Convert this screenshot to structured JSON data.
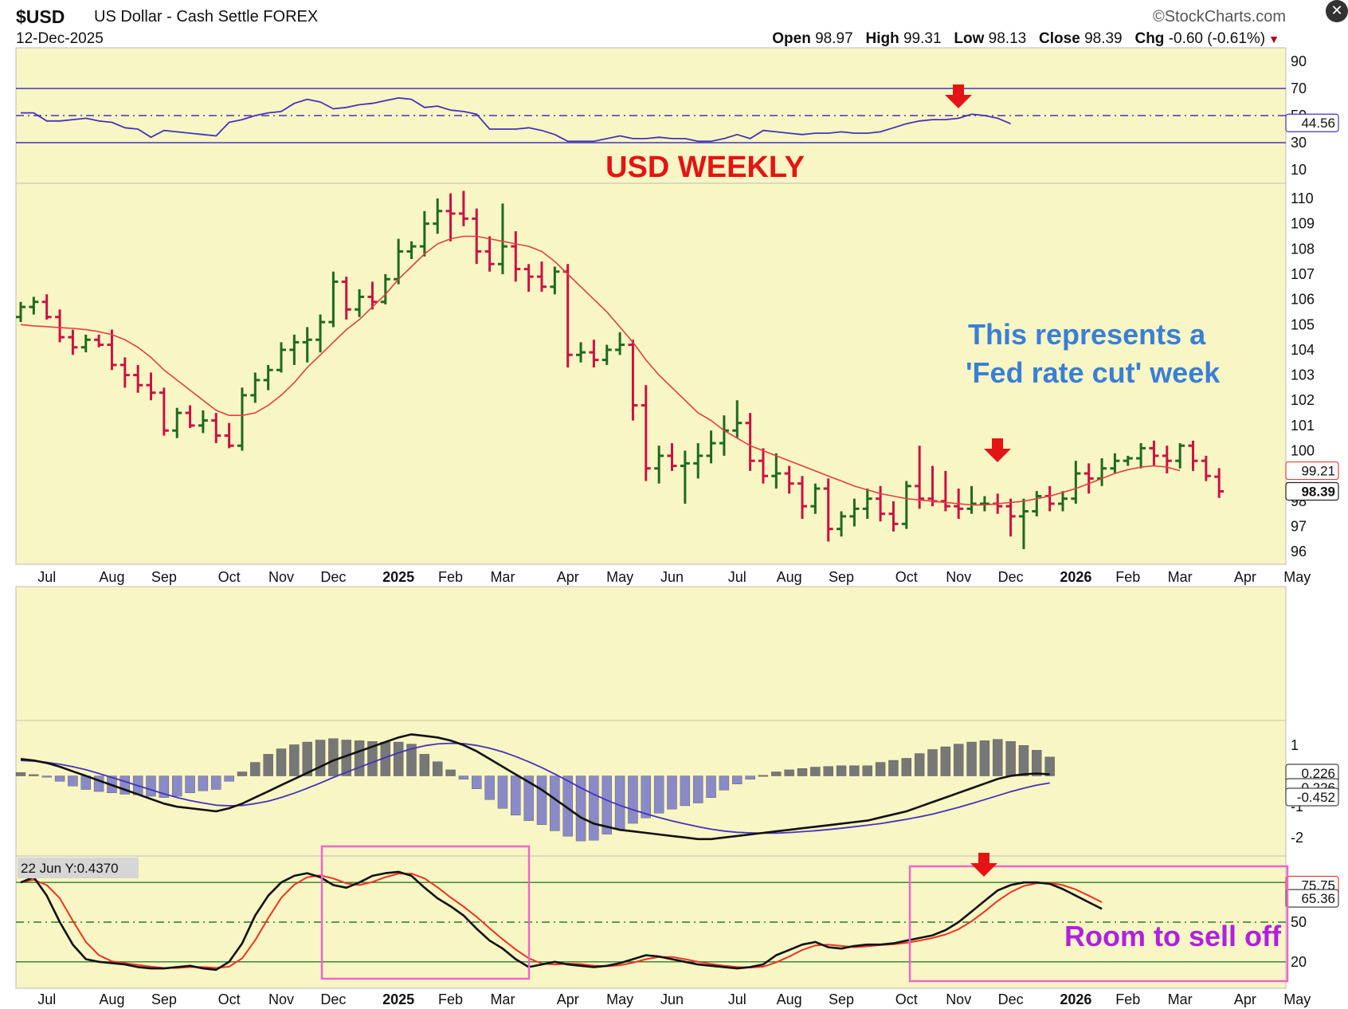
{
  "header": {
    "symbol": "$USD",
    "description": "US Dollar - Cash Settle  FOREX",
    "date": "12-Dec-2025",
    "source": "©StockCharts.com",
    "open_label": "Open",
    "open": "98.97",
    "high_label": "High",
    "high": "99.31",
    "low_label": "Low",
    "low": "98.13",
    "close_label": "Close",
    "close": "98.39",
    "chg_label": "Chg",
    "chg": "-0.60 (-0.61%)"
  },
  "chart_data": {
    "type": "line",
    "background": "#f8f6c4",
    "x_labels": [
      {
        "i": 2,
        "text": "Jul"
      },
      {
        "i": 7,
        "text": "Aug"
      },
      {
        "i": 11,
        "text": "Sep"
      },
      {
        "i": 16,
        "text": "Oct"
      },
      {
        "i": 20,
        "text": "Nov"
      },
      {
        "i": 24,
        "text": "Dec"
      },
      {
        "i": 29,
        "text": "2025",
        "bold": true
      },
      {
        "i": 33,
        "text": "Feb"
      },
      {
        "i": 37,
        "text": "Mar"
      },
      {
        "i": 42,
        "text": "Apr"
      },
      {
        "i": 46,
        "text": "May"
      },
      {
        "i": 50,
        "text": "Jun"
      },
      {
        "i": 55,
        "text": "Jul"
      },
      {
        "i": 59,
        "text": "Aug"
      },
      {
        "i": 63,
        "text": "Sep"
      },
      {
        "i": 68,
        "text": "Oct"
      },
      {
        "i": 72,
        "text": "Nov"
      },
      {
        "i": 76,
        "text": "Dec"
      },
      {
        "i": 81,
        "text": "2026",
        "bold": true
      },
      {
        "i": 85,
        "text": "Feb"
      },
      {
        "i": 89,
        "text": "Mar"
      },
      {
        "i": 94,
        "text": "Apr"
      },
      {
        "i": 98,
        "text": "May"
      }
    ],
    "rsi": {
      "ylim": [
        0,
        100
      ],
      "ticks": [
        90,
        70,
        50,
        30,
        10
      ],
      "levels": [
        70,
        50,
        30
      ],
      "last_value": "44.56",
      "values": [
        52,
        52,
        46,
        46,
        47,
        48,
        46,
        45,
        41,
        40,
        34,
        39,
        38,
        37,
        36,
        35,
        45,
        47,
        50,
        52,
        53,
        59,
        62,
        60,
        55,
        56,
        58,
        59,
        61,
        63,
        62,
        56,
        57,
        54,
        53,
        51,
        40,
        40,
        40,
        41,
        39,
        36,
        31,
        31,
        31,
        33,
        35,
        33,
        33,
        34,
        33,
        33,
        31,
        31,
        33,
        36,
        33,
        39,
        38,
        37,
        36,
        37,
        37,
        38,
        37,
        37,
        38,
        41,
        44,
        46,
        47,
        47,
        48,
        51,
        50,
        48,
        44
      ]
    },
    "price": {
      "ylim": [
        95.5,
        110.6
      ],
      "ticks": [
        110,
        109,
        108,
        107,
        106,
        105,
        104,
        103,
        102,
        101,
        100,
        98,
        97,
        96
      ],
      "ma_label": "99.21",
      "last_label": "98.39",
      "bars": [
        [
          105.3,
          105.9,
          105.1,
          105.7
        ],
        [
          105.7,
          106.1,
          105.4,
          105.9
        ],
        [
          105.9,
          106.2,
          105.2,
          105.3
        ],
        [
          105.3,
          105.6,
          104.3,
          104.5
        ],
        [
          104.5,
          104.8,
          103.8,
          104.1
        ],
        [
          104.1,
          104.6,
          103.9,
          104.4
        ],
        [
          104.4,
          104.6,
          104.1,
          104.2
        ],
        [
          104.2,
          104.8,
          103.2,
          103.4
        ],
        [
          103.4,
          103.7,
          102.5,
          103.0
        ],
        [
          103.0,
          103.4,
          102.3,
          102.6
        ],
        [
          102.6,
          103.1,
          102.0,
          102.3
        ],
        [
          102.3,
          102.5,
          100.6,
          100.8
        ],
        [
          100.8,
          101.7,
          100.5,
          101.5
        ],
        [
          101.5,
          101.8,
          100.9,
          101.0
        ],
        [
          101.0,
          101.6,
          100.7,
          101.2
        ],
        [
          101.2,
          101.5,
          100.3,
          100.6
        ],
        [
          100.6,
          101.1,
          100.1,
          100.2
        ],
        [
          100.2,
          102.5,
          100.0,
          102.2
        ],
        [
          102.2,
          103.1,
          101.9,
          102.8
        ],
        [
          102.8,
          103.4,
          102.4,
          103.2
        ],
        [
          103.2,
          104.3,
          103.1,
          104.0
        ],
        [
          104.0,
          104.6,
          103.4,
          104.3
        ],
        [
          104.3,
          104.9,
          103.5,
          104.4
        ],
        [
          104.4,
          105.4,
          103.9,
          105.1
        ],
        [
          105.1,
          107.1,
          104.9,
          106.7
        ],
        [
          106.7,
          106.9,
          105.2,
          105.6
        ],
        [
          105.6,
          106.4,
          105.3,
          106.1
        ],
        [
          106.1,
          106.7,
          105.6,
          105.9
        ],
        [
          105.9,
          107.0,
          105.8,
          106.8
        ],
        [
          106.8,
          108.4,
          106.6,
          107.9
        ],
        [
          107.9,
          108.3,
          107.6,
          108.1
        ],
        [
          108.1,
          109.5,
          107.7,
          109.0
        ],
        [
          109.0,
          110.0,
          108.6,
          109.5
        ],
        [
          109.5,
          110.2,
          108.3,
          109.4
        ],
        [
          109.4,
          110.3,
          108.9,
          109.2
        ],
        [
          109.2,
          109.6,
          107.4,
          107.9
        ],
        [
          107.9,
          108.5,
          107.1,
          107.4
        ],
        [
          107.4,
          109.8,
          107.0,
          108.1
        ],
        [
          108.1,
          108.7,
          106.7,
          107.2
        ],
        [
          107.2,
          107.4,
          106.3,
          106.9
        ],
        [
          106.9,
          107.5,
          106.3,
          106.5
        ],
        [
          106.5,
          107.3,
          106.2,
          107.1
        ],
        [
          107.1,
          107.4,
          103.3,
          103.8
        ],
        [
          103.8,
          104.3,
          103.5,
          103.9
        ],
        [
          103.9,
          104.4,
          103.3,
          103.6
        ],
        [
          103.6,
          104.2,
          103.4,
          104.0
        ],
        [
          104.0,
          104.7,
          103.8,
          104.2
        ],
        [
          104.2,
          104.4,
          101.2,
          101.8
        ],
        [
          101.8,
          102.6,
          98.8,
          99.3
        ],
        [
          99.3,
          100.2,
          98.7,
          99.8
        ],
        [
          99.8,
          100.3,
          99.2,
          99.4
        ],
        [
          99.4,
          100.0,
          97.9,
          99.5
        ],
        [
          99.5,
          100.3,
          98.9,
          99.8
        ],
        [
          99.8,
          100.8,
          99.5,
          100.3
        ],
        [
          100.3,
          101.4,
          99.8,
          100.8
        ],
        [
          100.8,
          102.0,
          100.5,
          101.1
        ],
        [
          101.1,
          101.5,
          99.2,
          99.6
        ],
        [
          99.6,
          100.1,
          98.7,
          99.0
        ],
        [
          99.0,
          99.9,
          98.5,
          99.1
        ],
        [
          99.1,
          99.4,
          98.3,
          98.7
        ],
        [
          98.7,
          99.0,
          97.3,
          97.8
        ],
        [
          97.8,
          98.7,
          97.5,
          98.5
        ],
        [
          98.5,
          98.9,
          96.4,
          96.9
        ],
        [
          96.9,
          97.6,
          96.6,
          97.4
        ],
        [
          97.4,
          98.1,
          97.0,
          97.7
        ],
        [
          97.7,
          98.5,
          97.3,
          98.1
        ],
        [
          98.1,
          98.6,
          97.2,
          97.5
        ],
        [
          97.5,
          98.0,
          96.8,
          97.1
        ],
        [
          97.1,
          98.8,
          96.9,
          98.6
        ],
        [
          98.6,
          100.2,
          97.7,
          98.1
        ],
        [
          98.1,
          99.4,
          97.8,
          98.0
        ],
        [
          98.0,
          99.2,
          97.6,
          97.8
        ],
        [
          97.8,
          98.5,
          97.3,
          97.7
        ],
        [
          97.7,
          98.6,
          97.5,
          97.9
        ],
        [
          97.9,
          98.2,
          97.6,
          97.9
        ],
        [
          97.9,
          98.3,
          97.5,
          97.8
        ],
        [
          97.8,
          98.1,
          96.6,
          97.4
        ],
        [
          97.4,
          98.1,
          96.1,
          97.6
        ],
        [
          97.6,
          98.4,
          97.4,
          98.2
        ],
        [
          98.2,
          98.6,
          97.6,
          97.9
        ],
        [
          97.9,
          98.4,
          97.6,
          98.1
        ],
        [
          98.1,
          99.6,
          97.9,
          99.1
        ],
        [
          99.1,
          99.5,
          98.3,
          98.9
        ],
        [
          98.9,
          99.7,
          98.6,
          99.3
        ],
        [
          99.3,
          99.9,
          99.1,
          99.6
        ],
        [
          99.6,
          99.8,
          99.4,
          99.7
        ],
        [
          99.7,
          100.3,
          99.3,
          100.1
        ],
        [
          100.1,
          100.4,
          99.4,
          99.8
        ],
        [
          99.8,
          100.2,
          99.1,
          99.6
        ],
        [
          99.6,
          100.3,
          99.3,
          100.2
        ],
        [
          100.2,
          100.4,
          99.2,
          99.6
        ],
        [
          99.6,
          99.8,
          98.8,
          99.0
        ],
        [
          98.97,
          99.31,
          98.13,
          98.39
        ]
      ],
      "ma": [
        105.0,
        104.95,
        104.92,
        104.88,
        104.85,
        104.8,
        104.72,
        104.6,
        104.4,
        104.1,
        103.7,
        103.2,
        102.8,
        102.4,
        102.0,
        101.6,
        101.4,
        101.4,
        101.5,
        101.8,
        102.2,
        102.7,
        103.3,
        103.8,
        104.3,
        104.8,
        105.2,
        105.7,
        106.2,
        106.8,
        107.3,
        107.8,
        108.2,
        108.4,
        108.5,
        108.5,
        108.4,
        108.3,
        108.2,
        108.1,
        107.9,
        107.5,
        107.0,
        106.5,
        106.0,
        105.5,
        104.9,
        104.3,
        103.6,
        103.0,
        102.5,
        102.0,
        101.5,
        101.2,
        100.8,
        100.5,
        100.2,
        100.0,
        99.8,
        99.6,
        99.4,
        99.2,
        99.0,
        98.8,
        98.6,
        98.45,
        98.3,
        98.2,
        98.1,
        98.05,
        98.0,
        97.95,
        97.9,
        97.85,
        97.85,
        97.9,
        97.95,
        98.0,
        98.1,
        98.2,
        98.35,
        98.5,
        98.7,
        98.9,
        99.1,
        99.25,
        99.35,
        99.4,
        99.35,
        99.21
      ]
    },
    "macd": {
      "ylim": [
        -2.6,
        1.8
      ],
      "ticks": [
        1,
        -1,
        -2
      ],
      "labels": [
        "0.226",
        "-0.226",
        "-0.452"
      ],
      "macd": [
        0.55,
        0.5,
        0.42,
        0.3,
        0.15,
        0.0,
        -0.15,
        -0.3,
        -0.45,
        -0.6,
        -0.75,
        -0.9,
        -1.0,
        -1.05,
        -1.1,
        -1.15,
        -1.05,
        -0.9,
        -0.7,
        -0.5,
        -0.3,
        -0.1,
        0.1,
        0.3,
        0.5,
        0.65,
        0.8,
        0.95,
        1.1,
        1.25,
        1.35,
        1.3,
        1.25,
        1.15,
        1.0,
        0.8,
        0.55,
        0.3,
        0.05,
        -0.2,
        -0.45,
        -0.75,
        -1.05,
        -1.35,
        -1.55,
        -1.65,
        -1.75,
        -1.8,
        -1.85,
        -1.9,
        -1.95,
        -2.0,
        -2.05,
        -2.05,
        -2.0,
        -1.95,
        -1.9,
        -1.85,
        -1.8,
        -1.75,
        -1.7,
        -1.65,
        -1.6,
        -1.55,
        -1.5,
        -1.45,
        -1.35,
        -1.25,
        -1.15,
        -1.0,
        -0.85,
        -0.7,
        -0.55,
        -0.4,
        -0.25,
        -0.1,
        0.0,
        0.05,
        0.08,
        0.05
      ],
      "signal": [
        0.5,
        0.48,
        0.44,
        0.38,
        0.3,
        0.2,
        0.08,
        -0.05,
        -0.18,
        -0.32,
        -0.45,
        -0.58,
        -0.7,
        -0.8,
        -0.88,
        -0.95,
        -0.97,
        -0.96,
        -0.9,
        -0.82,
        -0.7,
        -0.56,
        -0.4,
        -0.23,
        -0.05,
        0.12,
        0.28,
        0.44,
        0.6,
        0.75,
        0.88,
        0.98,
        1.04,
        1.06,
        1.05,
        0.99,
        0.9,
        0.78,
        0.63,
        0.46,
        0.27,
        0.06,
        -0.16,
        -0.39,
        -0.6,
        -0.79,
        -0.96,
        -1.1,
        -1.23,
        -1.35,
        -1.46,
        -1.56,
        -1.65,
        -1.73,
        -1.79,
        -1.83,
        -1.85,
        -1.86,
        -1.86,
        -1.84,
        -1.81,
        -1.78,
        -1.74,
        -1.7,
        -1.65,
        -1.6,
        -1.55,
        -1.48,
        -1.41,
        -1.33,
        -1.24,
        -1.13,
        -1.02,
        -0.9,
        -0.77,
        -0.64,
        -0.51,
        -0.4,
        -0.3,
        -0.23
      ]
    },
    "stoch": {
      "ylim": [
        0,
        100
      ],
      "ticks": [
        50,
        20
      ],
      "levels": [
        80,
        50,
        20
      ],
      "labels": [
        "75.75",
        "65.36"
      ],
      "readout": "22 Jun Y:0.4370",
      "annotation": "Room to sell off",
      "k": [
        80,
        84,
        70,
        50,
        33,
        22,
        20,
        19,
        18,
        16,
        15,
        15,
        16,
        17,
        15,
        14,
        20,
        34,
        55,
        70,
        80,
        85,
        87,
        84,
        78,
        76,
        80,
        85,
        87,
        88,
        85,
        76,
        68,
        62,
        55,
        45,
        36,
        30,
        22,
        16,
        18,
        20,
        18,
        17,
        16,
        17,
        19,
        22,
        25,
        24,
        22,
        20,
        18,
        17,
        16,
        15,
        16,
        18,
        25,
        29,
        33,
        35,
        31,
        30,
        32,
        33,
        33,
        34,
        36,
        38,
        40,
        44,
        50,
        58,
        66,
        74,
        78,
        80,
        80,
        79,
        75,
        70,
        65,
        60
      ]
    }
  },
  "annotations": {
    "title": "USD WEEKLY",
    "note_line1": "This represents a",
    "note_line2": "'Fed rate cut' week"
  },
  "colors": {
    "up": "#1e6a1e",
    "down": "#cc1144",
    "ma": "#e04040",
    "rsi": "#4433bb",
    "macd": "#111111",
    "signal": "#4433bb",
    "hist": "#777777",
    "stoch_k": "#111111",
    "stoch_d": "#ee3322",
    "annot_red": "#e41414",
    "annot_blue": "#3a7fd6",
    "annot_purple": "#b020e0",
    "box": "#ee66cc"
  }
}
